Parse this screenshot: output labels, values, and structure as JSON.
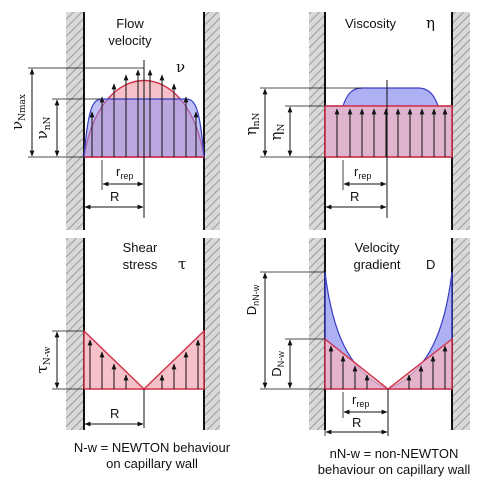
{
  "panels": {
    "flow_velocity": {
      "title_line1": "Flow",
      "title_line2": "velocity",
      "symbol": "ν",
      "label_max_main": "ν",
      "label_max_sub": "Nmax",
      "label_nN_main": "ν",
      "label_nN_sub": "nN",
      "label_rrep_main": "r",
      "label_rrep_sub": "rep",
      "label_R": "R"
    },
    "viscosity": {
      "title": "Viscosity",
      "symbol": "η",
      "label_nN_main": "η",
      "label_nN_sub": "nN",
      "label_N_main": "η",
      "label_N_sub": "N",
      "label_rrep_main": "r",
      "label_rrep_sub": "rep",
      "label_R": "R"
    },
    "shear_stress": {
      "title_line1": "Shear",
      "title_line2": "stress",
      "symbol": "τ",
      "label_tau_main": "τ",
      "label_tau_sub": "N-w",
      "label_R": "R"
    },
    "velocity_gradient": {
      "title_line1": "Velocity",
      "title_line2": "gradient",
      "symbol": "D",
      "label_nNw_main": "D",
      "label_nNw_sub": "nN-w",
      "label_Nw_main": "D",
      "label_Nw_sub": "N-w",
      "label_rrep_main": "r",
      "label_rrep_sub": "rep",
      "label_R": "R"
    }
  },
  "footnotes": {
    "left_line1": "N-w = NEWTON behaviour",
    "left_line2": "on capillary wall",
    "right_line1": "nN-w = non-NEWTON",
    "right_line2": "behaviour on capillary wall"
  },
  "colors": {
    "newton_fill": "#f4b6bf",
    "newton_stroke": "#d1324a",
    "non_newton_fill": "#8c8ff0",
    "non_newton_stroke": "#3a3fc4",
    "wall_hatch": "#888888"
  }
}
